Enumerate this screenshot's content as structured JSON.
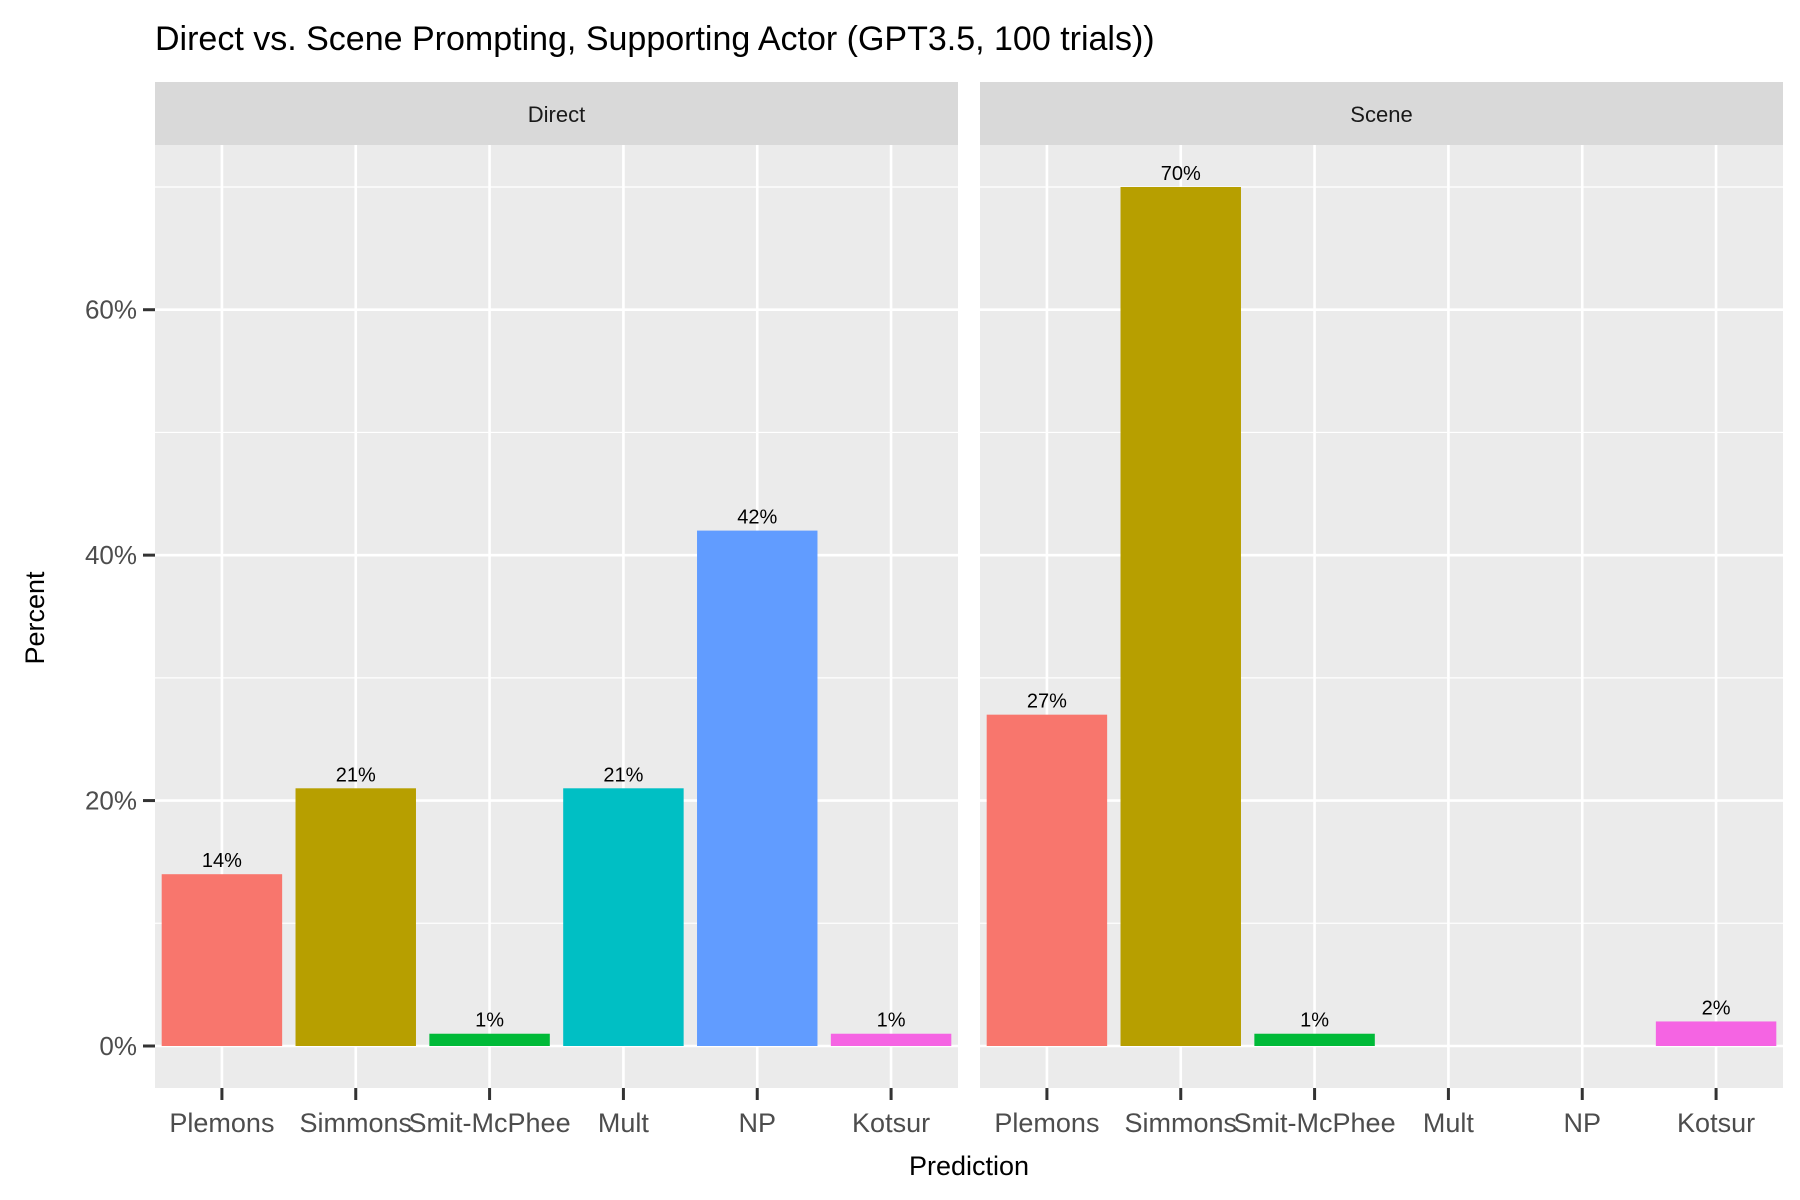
{
  "chart_data": {
    "type": "bar",
    "title": "Direct vs. Scene Prompting, Supporting Actor (GPT3.5, 100 trials))",
    "xlabel": "Prediction",
    "ylabel": "Percent",
    "ylim": [
      0,
      0.735
    ],
    "yticks": [
      0,
      0.2,
      0.4,
      0.6
    ],
    "ytick_labels": [
      "0%",
      "20%",
      "40%",
      "60%"
    ],
    "grid": true,
    "legend": "none",
    "categories": [
      "Plemons",
      "Simmons",
      "Smit-McPhee",
      "Mult",
      "NP",
      "Kotsur"
    ],
    "colors": [
      "#F8766D",
      "#B79F00",
      "#00BA38",
      "#00BFC4",
      "#619CFF",
      "#F564E3"
    ],
    "panels": [
      {
        "name": "Direct",
        "values": [
          0.14,
          0.21,
          0.01,
          0.21,
          0.42,
          0.01
        ],
        "labels": [
          "14%",
          "21%",
          "1%",
          "21%",
          "42%",
          "1%"
        ]
      },
      {
        "name": "Scene",
        "values": [
          0.27,
          0.7,
          0.01,
          null,
          null,
          0.02
        ],
        "labels": [
          "27%",
          "70%",
          "1%",
          null,
          null,
          "2%"
        ]
      }
    ]
  }
}
